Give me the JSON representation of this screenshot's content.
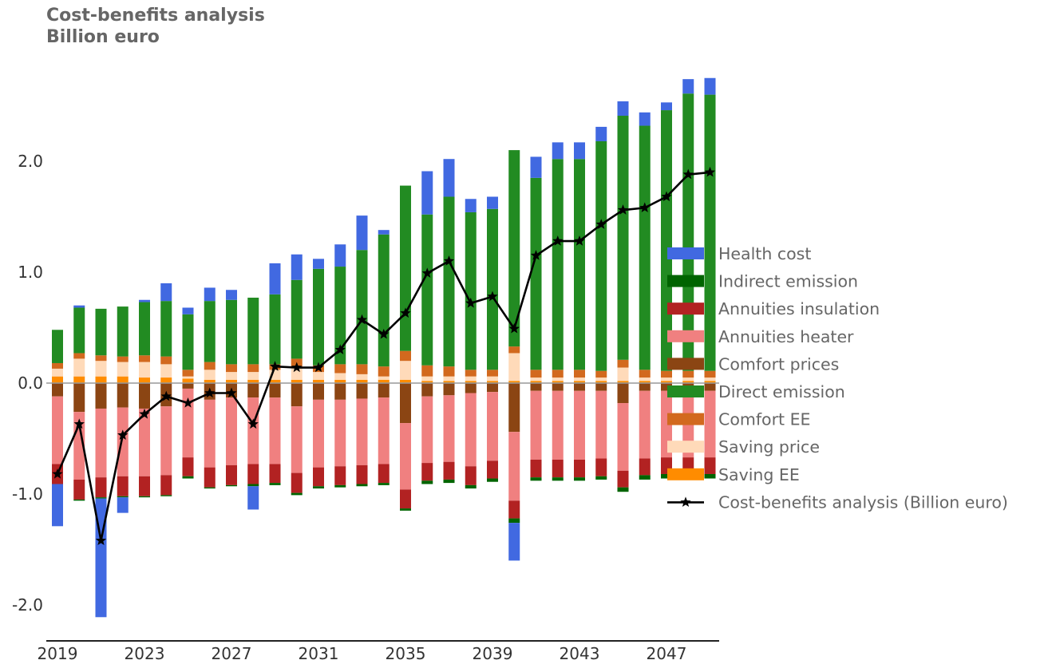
{
  "chart_data": {
    "type": "bar",
    "title": "Cost-benefits analysis",
    "subtitle": "Billion euro",
    "years": [
      2019,
      2020,
      2021,
      2022,
      2023,
      2024,
      2025,
      2026,
      2027,
      2028,
      2029,
      2030,
      2031,
      2032,
      2033,
      2034,
      2035,
      2036,
      2037,
      2038,
      2039,
      2040,
      2041,
      2042,
      2043,
      2044,
      2045,
      2046,
      2047,
      2048,
      2049
    ],
    "x_tick_labels": [
      "2019",
      "2023",
      "2027",
      "2031",
      "2035",
      "2039",
      "2043",
      "2047"
    ],
    "y_ticks": [
      -2.0,
      -1.0,
      0.0,
      1.0,
      2.0
    ],
    "y_tick_labels": [
      "-2.0",
      "-1.0",
      "0.0",
      "1.0",
      "2.0"
    ],
    "ylim": [
      -2.35,
      2.85
    ],
    "grid": false,
    "legend_position": "right",
    "stacked": true,
    "series": [
      {
        "key": "saving_ee",
        "name": "Saving EE",
        "color": "#FF8C00",
        "values": [
          0.06,
          0.06,
          0.06,
          0.06,
          0.05,
          0.05,
          0.04,
          0.03,
          0.03,
          0.03,
          0.03,
          0.03,
          0.03,
          0.03,
          0.03,
          0.03,
          0.03,
          0.02,
          0.02,
          0.02,
          0.02,
          0.02,
          0.02,
          0.02,
          0.02,
          0.02,
          0.02,
          0.02,
          0.02,
          0.02,
          0.02
        ]
      },
      {
        "key": "saving_price",
        "name": "Saving price",
        "color": "#FFDAB9",
        "values": [
          0.07,
          0.16,
          0.14,
          0.13,
          0.14,
          0.12,
          0.02,
          0.09,
          0.07,
          0.07,
          0.09,
          0.11,
          0.07,
          0.06,
          0.05,
          0.03,
          0.17,
          0.04,
          0.04,
          0.04,
          0.04,
          0.25,
          0.03,
          0.03,
          0.03,
          0.03,
          0.12,
          0.03,
          0.03,
          0.03,
          0.03
        ]
      },
      {
        "key": "comfort_ee",
        "name": "Comfort EE",
        "color": "#D2691E",
        "values": [
          0.05,
          0.05,
          0.05,
          0.05,
          0.06,
          0.07,
          0.06,
          0.07,
          0.07,
          0.07,
          0.05,
          0.08,
          0.06,
          0.08,
          0.09,
          0.09,
          0.09,
          0.1,
          0.09,
          0.06,
          0.06,
          0.06,
          0.07,
          0.07,
          0.07,
          0.06,
          0.07,
          0.07,
          0.06,
          0.06,
          0.06
        ]
      },
      {
        "key": "direct_emission",
        "name": "Direct emission",
        "color": "#228B22",
        "values": [
          0.3,
          0.41,
          0.42,
          0.45,
          0.48,
          0.5,
          0.5,
          0.55,
          0.58,
          0.6,
          0.63,
          0.71,
          0.87,
          0.88,
          1.03,
          1.19,
          1.49,
          1.36,
          1.53,
          1.42,
          1.45,
          1.77,
          1.73,
          1.9,
          1.9,
          2.07,
          2.2,
          2.2,
          2.35,
          2.5,
          2.49
        ]
      },
      {
        "key": "health_cost_pos",
        "name": "Health cost",
        "color": "#4169E1",
        "values": [
          0,
          0.02,
          0,
          0,
          0.02,
          0.16,
          0.06,
          0.12,
          0.09,
          0,
          0.28,
          0.23,
          0.09,
          0.2,
          0.31,
          0.04,
          0,
          0.39,
          0.34,
          0.12,
          0.11,
          0,
          0.19,
          0.15,
          0.15,
          0.13,
          0.13,
          0.12,
          0.07,
          0.13,
          0.15
        ]
      },
      {
        "key": "comfort_prices",
        "name": "Comfort prices",
        "color": "#8B4513",
        "values": [
          -0.12,
          -0.26,
          -0.23,
          -0.22,
          -0.23,
          -0.21,
          -0.05,
          -0.15,
          -0.13,
          -0.13,
          -0.13,
          -0.21,
          -0.15,
          -0.15,
          -0.14,
          -0.13,
          -0.36,
          -0.12,
          -0.11,
          -0.09,
          -0.08,
          -0.44,
          -0.07,
          -0.07,
          -0.07,
          -0.07,
          -0.18,
          -0.07,
          -0.07,
          -0.07,
          -0.07
        ]
      },
      {
        "key": "annuities_heater",
        "name": "Annuities heater",
        "color": "#F08080",
        "values": [
          -0.61,
          -0.61,
          -0.62,
          -0.62,
          -0.61,
          -0.62,
          -0.62,
          -0.61,
          -0.61,
          -0.6,
          -0.6,
          -0.6,
          -0.61,
          -0.6,
          -0.6,
          -0.6,
          -0.6,
          -0.6,
          -0.6,
          -0.66,
          -0.62,
          -0.62,
          -0.62,
          -0.62,
          -0.62,
          -0.61,
          -0.61,
          -0.61,
          -0.6,
          -0.6,
          -0.6
        ]
      },
      {
        "key": "annuities_insulation",
        "name": "Annuities insulation",
        "color": "#B22222",
        "values": [
          -0.18,
          -0.18,
          -0.18,
          -0.18,
          -0.18,
          -0.18,
          -0.17,
          -0.18,
          -0.18,
          -0.18,
          -0.17,
          -0.18,
          -0.17,
          -0.17,
          -0.17,
          -0.17,
          -0.17,
          -0.16,
          -0.16,
          -0.17,
          -0.16,
          -0.16,
          -0.16,
          -0.16,
          -0.16,
          -0.16,
          -0.15,
          -0.15,
          -0.15,
          -0.15,
          -0.15
        ]
      },
      {
        "key": "indirect_emission",
        "name": "Indirect emission",
        "color": "#006400",
        "values": [
          0,
          -0.01,
          -0.01,
          -0.01,
          -0.01,
          -0.01,
          -0.02,
          -0.01,
          -0.01,
          -0.02,
          -0.02,
          -0.02,
          -0.02,
          -0.02,
          -0.02,
          -0.02,
          -0.02,
          -0.03,
          -0.03,
          -0.03,
          -0.03,
          -0.04,
          -0.03,
          -0.03,
          -0.03,
          -0.03,
          -0.04,
          -0.04,
          -0.04,
          -0.04,
          -0.04
        ]
      },
      {
        "key": "health_cost_neg",
        "name": "Health cost",
        "color": "#4169E1",
        "values": [
          -0.38,
          0,
          -1.07,
          -0.14,
          0,
          0,
          0,
          0,
          0,
          -0.21,
          0,
          0,
          0,
          0,
          0,
          0,
          0,
          0,
          0,
          0,
          0,
          -0.34,
          0,
          0,
          0,
          0,
          0,
          0,
          0,
          0,
          0
        ]
      }
    ],
    "line": {
      "name": "Cost-benefits analysis (Billion euro)",
      "color": "#000000",
      "values": [
        -0.82,
        -0.37,
        -1.42,
        -0.47,
        -0.28,
        -0.12,
        -0.18,
        -0.09,
        -0.09,
        -0.37,
        0.15,
        0.14,
        0.14,
        0.3,
        0.57,
        0.44,
        0.63,
        0.99,
        1.1,
        0.72,
        0.78,
        0.49,
        1.15,
        1.28,
        1.28,
        1.43,
        1.56,
        1.58,
        1.68,
        1.88,
        1.9
      ]
    },
    "legend": [
      {
        "label": "Health cost",
        "color": "#4169E1",
        "kind": "patch"
      },
      {
        "label": "Indirect emission",
        "color": "#006400",
        "kind": "patch"
      },
      {
        "label": "Annuities insulation",
        "color": "#B22222",
        "kind": "patch"
      },
      {
        "label": "Annuities heater",
        "color": "#F08080",
        "kind": "patch"
      },
      {
        "label": "Comfort prices",
        "color": "#8B4513",
        "kind": "patch"
      },
      {
        "label": "Direct emission",
        "color": "#228B22",
        "kind": "patch"
      },
      {
        "label": "Comfort EE",
        "color": "#D2691E",
        "kind": "patch"
      },
      {
        "label": "Saving price",
        "color": "#FFDAB9",
        "kind": "patch"
      },
      {
        "label": "Saving EE",
        "color": "#FF8C00",
        "kind": "patch"
      },
      {
        "label": "Cost-benefits analysis (Billion euro)",
        "color": "#000000",
        "kind": "line-star"
      }
    ]
  }
}
